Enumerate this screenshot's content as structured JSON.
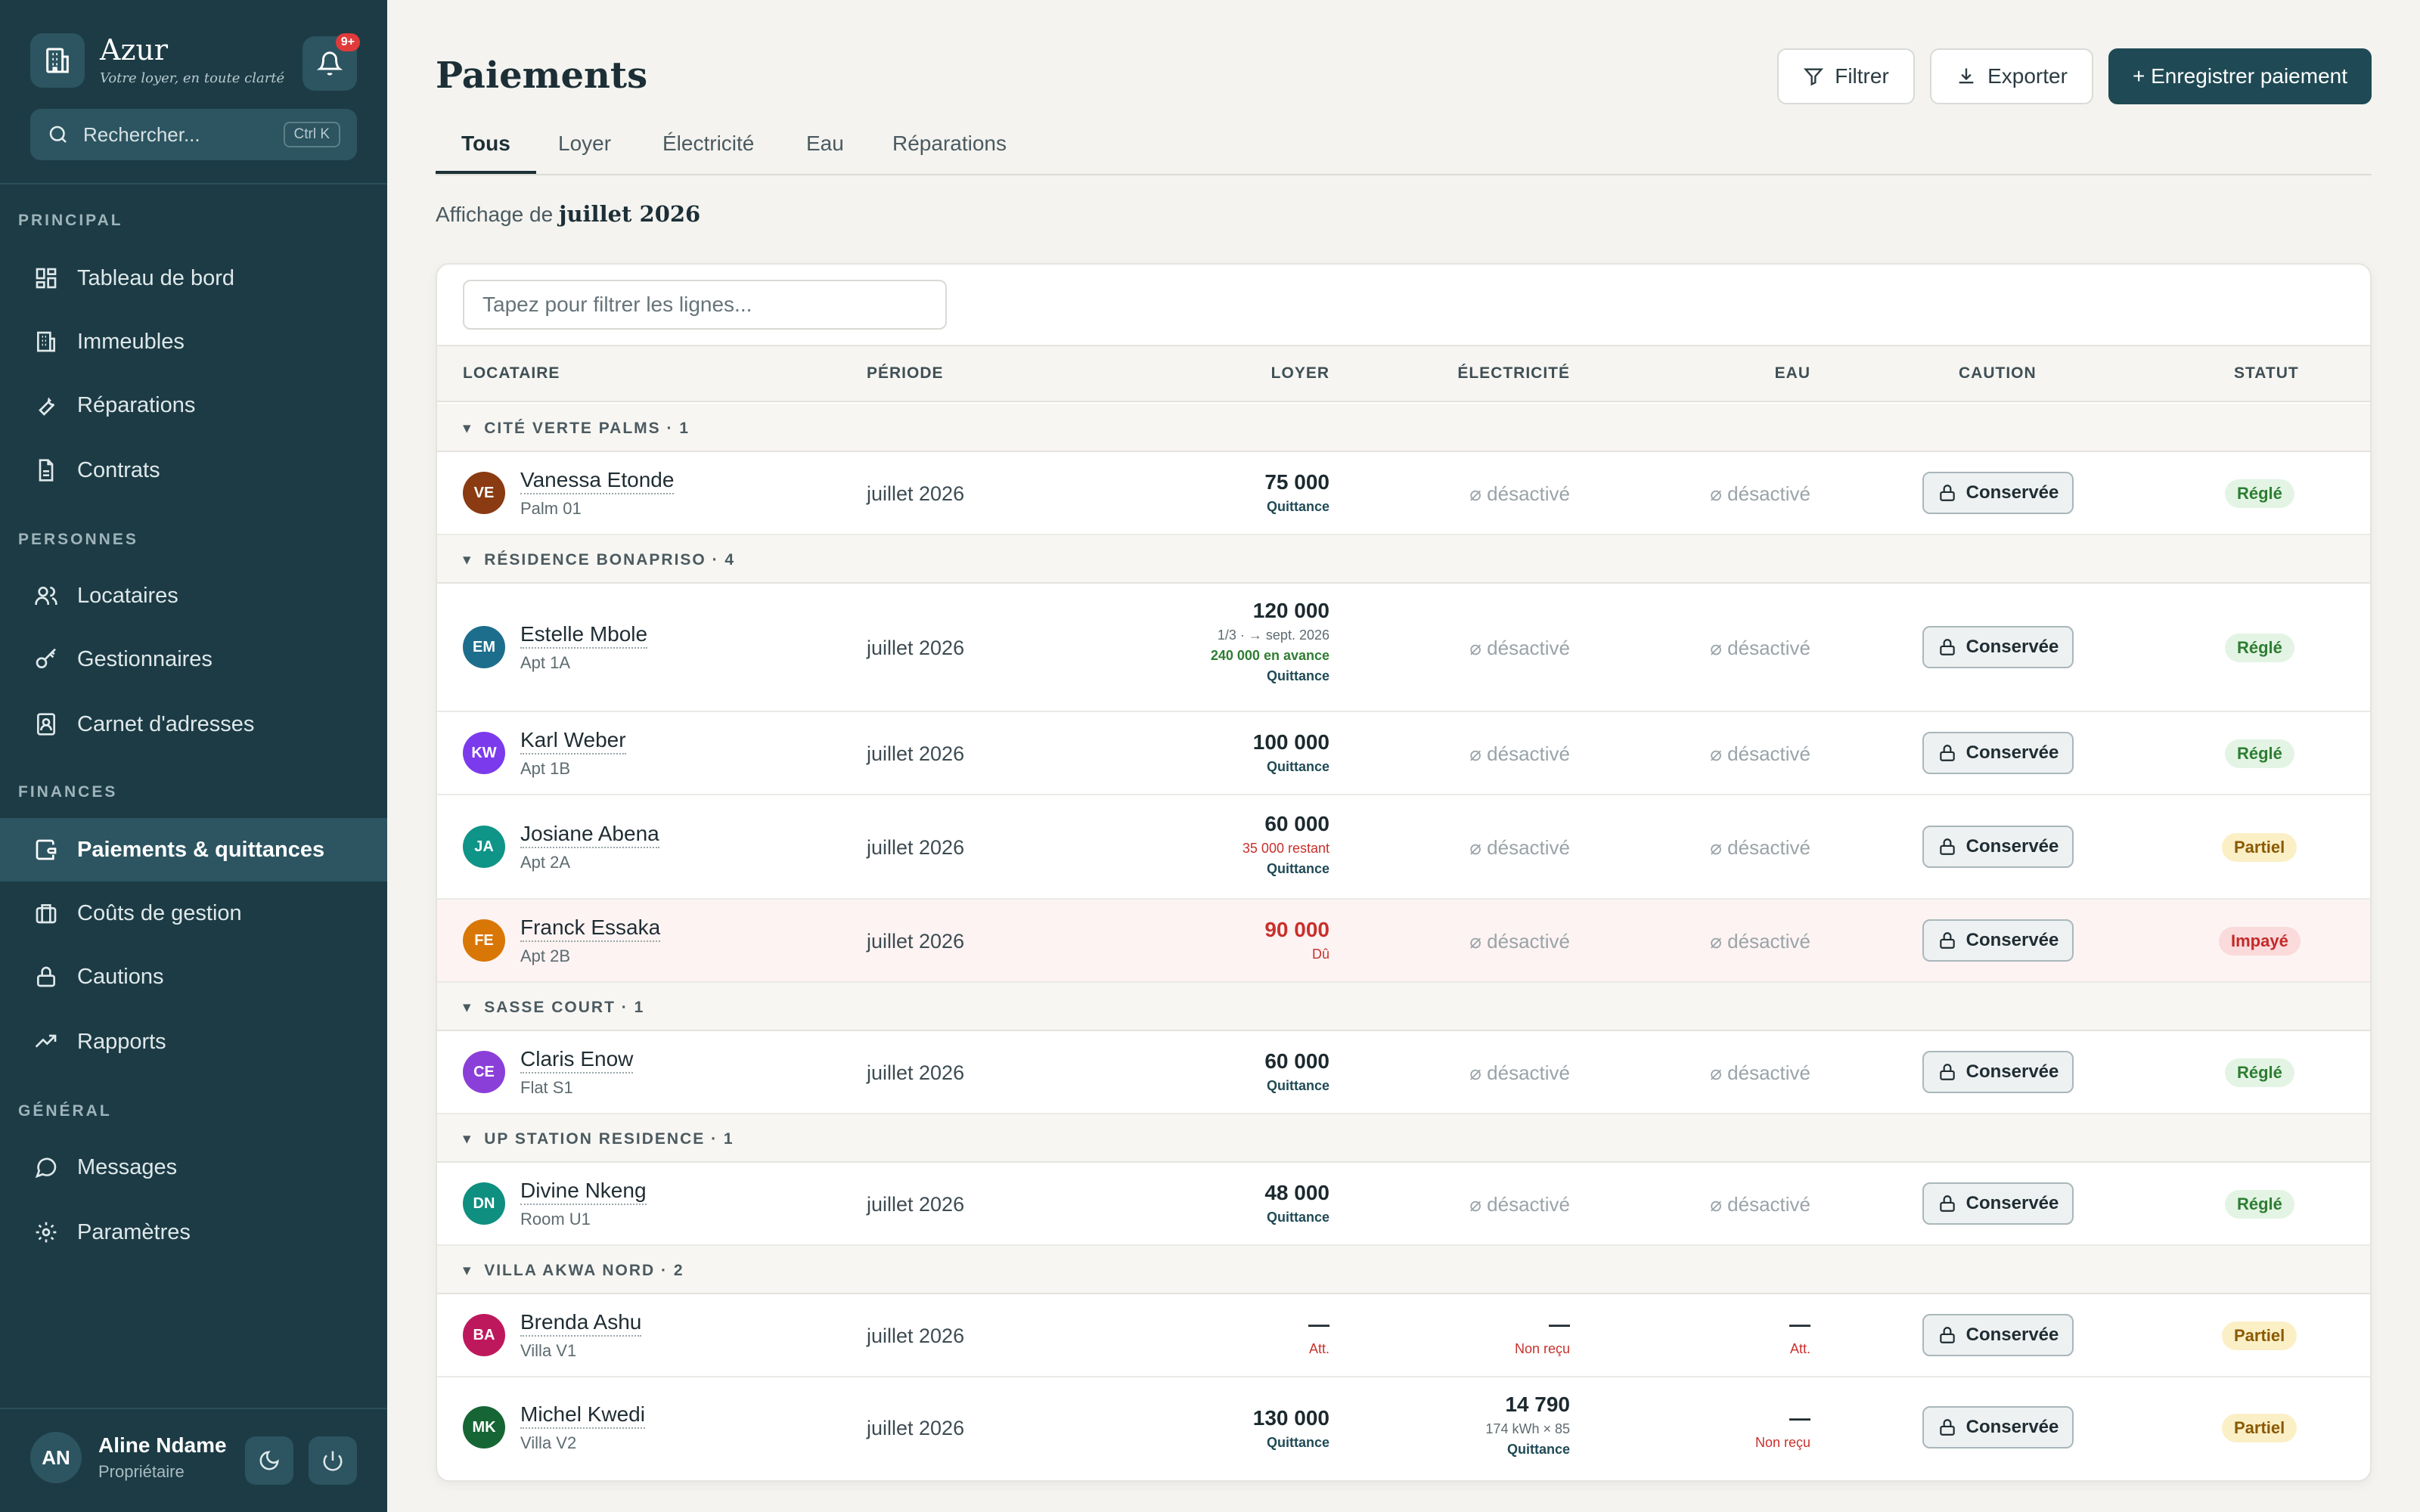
{
  "brand": {
    "name": "Azur",
    "tagline": "Votre loyer, en toute clarté",
    "notif_badge": "9+"
  },
  "search": {
    "placeholder": "Rechercher...",
    "shortcut": "Ctrl K"
  },
  "sidebar": {
    "sections": [
      {
        "label": "PRINCIPAL",
        "items": [
          {
            "label": "Tableau de bord",
            "icon": "dashboard-icon"
          },
          {
            "label": "Immeubles",
            "icon": "building-icon"
          },
          {
            "label": "Réparations",
            "icon": "wrench-icon"
          },
          {
            "label": "Contrats",
            "icon": "document-icon"
          }
        ]
      },
      {
        "label": "PERSONNES",
        "items": [
          {
            "label": "Locataires",
            "icon": "users-icon"
          },
          {
            "label": "Gestionnaires",
            "icon": "key-icon"
          },
          {
            "label": "Carnet d'adresses",
            "icon": "contact-icon"
          }
        ]
      },
      {
        "label": "FINANCES",
        "items": [
          {
            "label": "Paiements & quittances",
            "icon": "wallet-icon",
            "active": true
          },
          {
            "label": "Coûts de gestion",
            "icon": "briefcase-icon"
          },
          {
            "label": "Cautions",
            "icon": "lock-icon"
          },
          {
            "label": "Rapports",
            "icon": "trend-icon"
          }
        ]
      },
      {
        "label": "GÉNÉRAL",
        "items": [
          {
            "label": "Messages",
            "icon": "chat-icon"
          },
          {
            "label": "Paramètres",
            "icon": "gear-icon"
          }
        ]
      }
    ]
  },
  "user": {
    "initials": "AN",
    "name": "Aline Ndame",
    "role": "Propriétaire"
  },
  "header": {
    "title": "Paiements",
    "filter_label": "Filtrer",
    "export_label": "Exporter",
    "record_label": "+ Enregistrer paiement"
  },
  "tabs": [
    "Tous",
    "Loyer",
    "Électricité",
    "Eau",
    "Réparations"
  ],
  "showing": {
    "prefix": "Affichage de",
    "period": "juillet 2026"
  },
  "table": {
    "filter_placeholder": "Tapez pour filtrer les lignes...",
    "columns": [
      "LOCATAIRE",
      "PÉRIODE",
      "LOYER",
      "ÉLECTRICITÉ",
      "EAU",
      "CAUTION",
      "STATUT"
    ],
    "disabled_label": "⌀ désactivé",
    "caution_label": "Conservée",
    "groups": [
      {
        "label": "CITÉ VERTE PALMS · 1"
      },
      {
        "label": "RÉSIDENCE BONAPRISO · 4"
      },
      {
        "label": "SASSE COURT · 1"
      },
      {
        "label": "UP STATION RESIDENCE · 1"
      },
      {
        "label": "VILLA AKWA NORD · 2"
      }
    ],
    "rows": [
      {
        "initials": "VE",
        "color": "#8a3b12",
        "name": "Vanessa Etonde",
        "unit": "Palm 01",
        "period": "juillet 2026",
        "rent": "75 000",
        "rent_sub": "Quittance",
        "status": "Réglé"
      },
      {
        "initials": "EM",
        "color": "#1c6e8c",
        "name": "Estelle Mbole",
        "unit": "Apt 1A",
        "period": "juillet 2026",
        "rent": "120 000",
        "rent_sub1": "1/3 · → sept. 2026",
        "rent_sub2": "240 000 en avance",
        "rent_sub": "Quittance",
        "status": "Réglé"
      },
      {
        "initials": "KW",
        "color": "#7c3aed",
        "name": "Karl Weber",
        "unit": "Apt 1B",
        "period": "juillet 2026",
        "rent": "100 000",
        "rent_sub": "Quittance",
        "status": "Réglé"
      },
      {
        "initials": "JA",
        "color": "#0f9488",
        "name": "Josiane Abena",
        "unit": "Apt 2A",
        "period": "juillet 2026",
        "rent": "60 000",
        "rent_sub1": "35 000 restant",
        "rent_sub": "Quittance",
        "status": "Partiel"
      },
      {
        "initials": "FE",
        "color": "#d97706",
        "name": "Franck Essaka",
        "unit": "Apt 2B",
        "period": "juillet 2026",
        "rent": "90 000",
        "rent_sub": "Dû",
        "status": "Impayé"
      },
      {
        "initials": "CE",
        "color": "#8b3fd9",
        "name": "Claris Enow",
        "unit": "Flat S1",
        "period": "juillet 2026",
        "rent": "60 000",
        "rent_sub": "Quittance",
        "status": "Réglé"
      },
      {
        "initials": "DN",
        "color": "#0f8f80",
        "name": "Divine Nkeng",
        "unit": "Room U1",
        "period": "juillet 2026",
        "rent": "48 000",
        "rent_sub": "Quittance",
        "status": "Réglé"
      },
      {
        "initials": "BA",
        "color": "#be185d",
        "name": "Brenda Ashu",
        "unit": "Villa V1",
        "period": "juillet 2026",
        "rent": "—",
        "rent_sub": "Att.",
        "elec": "—",
        "elec_sub": "Non reçu",
        "water": "—",
        "water_sub": "Att.",
        "status": "Partiel"
      },
      {
        "initials": "MK",
        "color": "#166534",
        "name": "Michel Kwedi",
        "unit": "Villa V2",
        "period": "juillet 2026",
        "rent": "130 000",
        "rent_sub": "Quittance",
        "elec": "14 790",
        "elec_sub1": "174 kWh × 85",
        "elec_sub": "Quittance",
        "water": "—",
        "water_sub": "Non reçu",
        "status": "Partiel"
      }
    ]
  }
}
